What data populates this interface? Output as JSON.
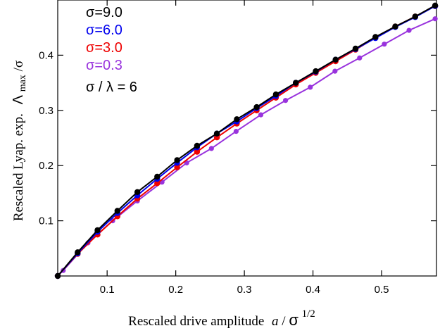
{
  "chart_data": {
    "type": "line",
    "xlabel": {
      "text": "Rescaled drive amplitude",
      "var": "a",
      "sep": " / ",
      "sym": "σ",
      "exp": "1/2"
    },
    "ylabel": {
      "text": "Rescaled Lyap. exp.",
      "sym": "Λ",
      "sub": "max",
      "tail": "/σ"
    },
    "xlim": [
      0.028,
      0.58
    ],
    "ylim": [
      0.0,
      0.5
    ],
    "xticks": [
      "0.1",
      "0.2",
      "0.3",
      "0.4",
      "0.5"
    ],
    "yticks": [
      "0.1",
      "0.2",
      "0.3",
      "0.4"
    ],
    "legend_position": "top-left",
    "annotation": "σ / λ = 6",
    "series": [
      {
        "name": "σ=9.0",
        "color": "#000000",
        "x": [
          0.028,
          0.057,
          0.086,
          0.115,
          0.144,
          0.173,
          0.202,
          0.231,
          0.26,
          0.289,
          0.318,
          0.346,
          0.375,
          0.404,
          0.433,
          0.462,
          0.491,
          0.52,
          0.549,
          0.578
        ],
        "y": [
          0.0,
          0.043,
          0.083,
          0.118,
          0.152,
          0.18,
          0.21,
          0.236,
          0.258,
          0.284,
          0.306,
          0.329,
          0.35,
          0.371,
          0.392,
          0.412,
          0.433,
          0.452,
          0.47,
          0.49
        ]
      },
      {
        "name": "σ=6.0",
        "color": "#0000ee",
        "x": [
          0.028,
          0.057,
          0.086,
          0.115,
          0.144,
          0.173,
          0.202,
          0.231,
          0.26,
          0.289,
          0.318,
          0.346,
          0.375,
          0.404,
          0.433,
          0.462,
          0.491,
          0.52,
          0.549,
          0.578
        ],
        "y": [
          0.0,
          0.041,
          0.08,
          0.114,
          0.146,
          0.176,
          0.205,
          0.233,
          0.258,
          0.28,
          0.304,
          0.326,
          0.35,
          0.37,
          0.392,
          0.411,
          0.431,
          0.451,
          0.469,
          0.489
        ]
      },
      {
        "name": "σ=3.0",
        "color": "#ee0000",
        "x": [
          0.028,
          0.057,
          0.086,
          0.115,
          0.144,
          0.173,
          0.202,
          0.231,
          0.26,
          0.289,
          0.318,
          0.346,
          0.375,
          0.404,
          0.433,
          0.462,
          0.491,
          0.52,
          0.549,
          0.578
        ],
        "y": [
          0.0,
          0.04,
          0.075,
          0.108,
          0.14,
          0.168,
          0.197,
          0.225,
          0.251,
          0.276,
          0.3,
          0.323,
          0.347,
          0.368,
          0.389,
          0.41,
          0.432,
          0.452,
          0.47,
          0.489
        ]
      },
      {
        "name": "σ=0.3",
        "color": "#9933dd",
        "x": [
          0.028,
          0.036,
          0.072,
          0.108,
          0.144,
          0.18,
          0.216,
          0.252,
          0.288,
          0.324,
          0.36,
          0.396,
          0.432,
          0.468,
          0.504,
          0.54,
          0.578
        ],
        "y": [
          0.0,
          0.01,
          0.06,
          0.1,
          0.136,
          0.17,
          0.205,
          0.231,
          0.262,
          0.292,
          0.318,
          0.342,
          0.371,
          0.395,
          0.42,
          0.445,
          0.466
        ]
      }
    ]
  }
}
